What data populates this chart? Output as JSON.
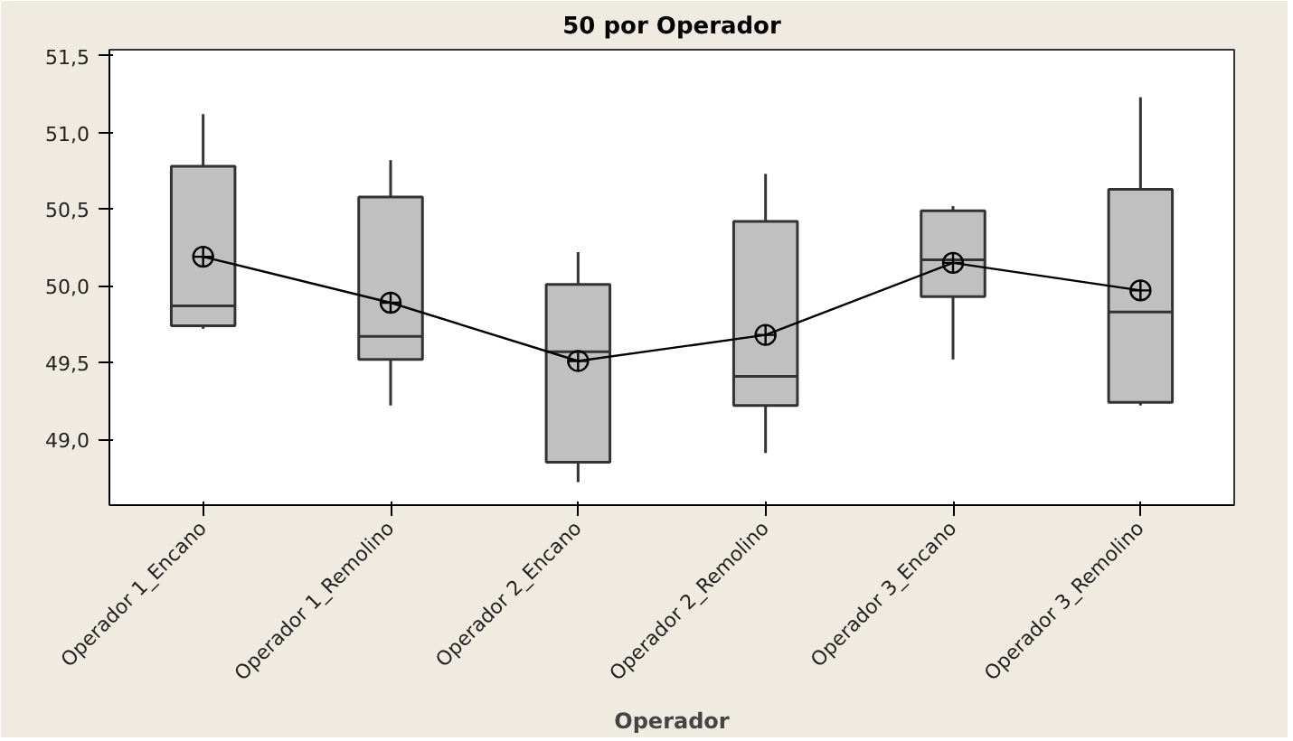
{
  "chart_data": {
    "type": "box",
    "title": "50 por Operador",
    "xlabel": "Operador",
    "categories": [
      "Operador 1_Encano",
      "Operador 1_Remolino",
      "Operador 2_Encano",
      "Operador 2_Remolino",
      "Operador 3_Encano",
      "Operador 3_Remolino"
    ],
    "color": "#c0c0c0",
    "boxes": [
      {
        "low": 49.72,
        "q1": 49.74,
        "median": 49.87,
        "q3": 50.78,
        "high": 51.12
      },
      {
        "low": 49.22,
        "q1": 49.52,
        "median": 49.67,
        "q3": 50.58,
        "high": 50.82
      },
      {
        "low": 48.72,
        "q1": 48.85,
        "median": 49.57,
        "q3": 50.01,
        "high": 50.22
      },
      {
        "low": 48.91,
        "q1": 49.22,
        "median": 49.41,
        "q3": 50.42,
        "high": 50.73
      },
      {
        "low": 49.52,
        "q1": 49.93,
        "median": 50.17,
        "q3": 50.49,
        "high": 50.52
      },
      {
        "low": 49.22,
        "q1": 49.24,
        "median": 49.83,
        "q3": 50.63,
        "high": 51.23
      }
    ],
    "series": [
      {
        "type": "line",
        "color": "#000000",
        "marker": "circle",
        "values": [
          50.19,
          49.89,
          49.51,
          49.68,
          50.15,
          49.97
        ]
      }
    ],
    "ylim": [
      48.57,
      51.54
    ],
    "yticks": [
      {
        "value": 49.0,
        "label": "49,0"
      },
      {
        "value": 49.5,
        "label": "49,5"
      },
      {
        "value": 50.0,
        "label": "50,0"
      },
      {
        "value": 50.5,
        "label": "50,5"
      },
      {
        "value": 51.0,
        "label": "51,0"
      },
      {
        "value": 51.5,
        "label": "51,5"
      }
    ],
    "grid": false
  }
}
